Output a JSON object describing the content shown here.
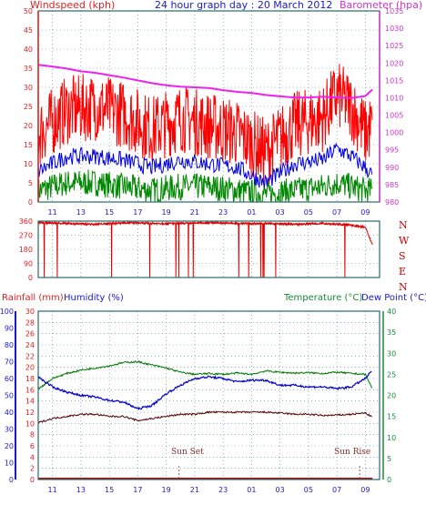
{
  "header": {
    "left": "Windspeed (kph)",
    "center": "24 hour graph day : 20 March 2012",
    "right": "Barometer (hpa)"
  },
  "mid_header": {
    "rain": "Rainfall (mm)",
    "humidity": "Humidity (%)",
    "temp": "Temperature (°C)",
    "dew": "Dew Point (°C)"
  },
  "colors": {
    "grid": "#3a8a8a",
    "wind_axis": "#e02020",
    "baro_axis": "#cc33cc",
    "rain_axis": "#1a1acc",
    "temp_axis": "#1a8a3a",
    "frame": "#2a6a6a"
  },
  "time_ticks": [
    "11",
    "13",
    "15",
    "17",
    "19",
    "21",
    "23",
    "01",
    "03",
    "05",
    "07",
    "09"
  ],
  "annotations": {
    "sunset": "Sun Set",
    "sunrise": "Sun Rise"
  },
  "chart_data": [
    {
      "type": "line",
      "title": "24 hour graph day : 20 March 2012",
      "x_ticks": [
        "11",
        "13",
        "15",
        "17",
        "19",
        "21",
        "23",
        "01",
        "03",
        "05",
        "07",
        "09"
      ],
      "y_left": {
        "label": "Windspeed (kph)",
        "ticks": [
          0,
          5,
          10,
          15,
          20,
          25,
          30,
          35,
          40,
          45,
          50
        ],
        "range": [
          0,
          50
        ]
      },
      "y_right": {
        "label": "Barometer (hpa)",
        "ticks": [
          980,
          985,
          990,
          995,
          1000,
          1005,
          1010,
          1015,
          1020,
          1025,
          1030,
          1035
        ],
        "range": [
          980,
          1035
        ]
      },
      "series": [
        {
          "name": "Barometer (hpa)",
          "color": "#ee22ee",
          "x": [
            10,
            11,
            12,
            13,
            14,
            15,
            16,
            17,
            18,
            19,
            20,
            21,
            22,
            23,
            24,
            25,
            26,
            27,
            28,
            29,
            30,
            31,
            32,
            33,
            33.5
          ],
          "values": [
            1019.5,
            1019,
            1018.4,
            1017.6,
            1017.2,
            1016.5,
            1015.8,
            1015,
            1014.2,
            1013.6,
            1013.2,
            1013,
            1012.8,
            1012.2,
            1011.7,
            1011.4,
            1010.8,
            1010.4,
            1010.1,
            1010.1,
            1010.3,
            1010.1,
            1009.9,
            1010.5,
            1012.4
          ]
        },
        {
          "name": "Windspeed gust",
          "color": "#ff0000",
          "x": [
            10,
            12,
            14,
            16,
            18,
            20,
            22,
            24,
            26,
            28,
            30,
            31,
            32,
            33,
            33.5
          ],
          "values": [
            18,
            24,
            25,
            23,
            19,
            22,
            20,
            18,
            13,
            20,
            22,
            28,
            25,
            18,
            20
          ]
        },
        {
          "name": "Windspeed average",
          "color": "#0000dd",
          "x": [
            10,
            12,
            14,
            16,
            18,
            20,
            22,
            24,
            26,
            28,
            30,
            31,
            32,
            33,
            33.5
          ],
          "values": [
            8,
            12,
            12,
            11,
            9,
            11,
            10,
            9,
            5,
            10,
            11,
            14,
            12,
            9,
            7
          ]
        },
        {
          "name": "Windspeed min",
          "color": "#008800",
          "x": [
            10,
            12,
            14,
            16,
            18,
            20,
            22,
            24,
            26,
            28,
            30,
            31,
            32,
            33,
            33.5
          ],
          "values": [
            3,
            5,
            5,
            4,
            3,
            4,
            4,
            3,
            2,
            3,
            4,
            5,
            4,
            3,
            3
          ]
        }
      ]
    },
    {
      "type": "scatter",
      "y_left": {
        "ticks": [
          0,
          90,
          180,
          270,
          360
        ],
        "range": [
          0,
          360
        ]
      },
      "y_right": {
        "labels": [
          "N",
          "W",
          "S",
          "E",
          "N"
        ]
      },
      "series": [
        {
          "name": "Wind direction",
          "color": "#dd0000",
          "x": [
            10,
            12,
            14,
            16,
            18,
            20,
            22,
            24,
            26,
            28,
            30,
            32,
            33,
            33.5
          ],
          "values": [
            350,
            345,
            340,
            350,
            345,
            345,
            350,
            345,
            345,
            340,
            345,
            335,
            320,
            210
          ]
        }
      ]
    },
    {
      "type": "line",
      "y_rain": {
        "label": "Rainfall (mm)",
        "ticks": [
          0,
          2,
          4,
          6,
          8,
          10,
          12,
          14,
          16,
          18,
          20,
          22,
          24,
          26,
          28,
          30
        ],
        "range": [
          0,
          30
        ]
      },
      "y_humidity": {
        "label": "Humidity (%)",
        "ticks": [
          0,
          10,
          20,
          30,
          40,
          50,
          60,
          70,
          80,
          90,
          100
        ],
        "range": [
          0,
          100
        ]
      },
      "y_temp": {
        "label": "Temperature (°C)",
        "ticks": [
          0,
          5,
          10,
          15,
          20,
          25,
          30,
          35,
          40
        ],
        "range": [
          0,
          40
        ]
      },
      "series": [
        {
          "name": "Temperature (°C)",
          "color": "#007700",
          "x": [
            10,
            11,
            12,
            13,
            14,
            15,
            16,
            17,
            18,
            19,
            20,
            21,
            22,
            23,
            24,
            25,
            26,
            27,
            28,
            29,
            30,
            31,
            32,
            33,
            33.5
          ],
          "values": [
            21.5,
            24,
            25.2,
            26,
            26.5,
            27,
            27.8,
            28,
            27.2,
            26.5,
            25.5,
            25,
            25.2,
            25,
            25.3,
            25,
            25.8,
            25.5,
            25.3,
            25.4,
            25.2,
            25.5,
            25.2,
            25,
            21.5
          ]
        },
        {
          "name": "Humidity (%)",
          "color": "#0000cc",
          "x": [
            10,
            11,
            12,
            13,
            14,
            15,
            16,
            17,
            18,
            19,
            20,
            21,
            22,
            23,
            24,
            25,
            26,
            27,
            28,
            29,
            30,
            31,
            32,
            33,
            33.5
          ],
          "values": [
            61,
            55,
            52,
            50,
            49,
            47,
            46,
            42,
            44,
            51,
            56,
            60,
            61,
            60,
            58,
            59,
            59,
            56,
            56,
            55,
            55,
            54,
            55,
            60,
            65
          ]
        },
        {
          "name": "Dew Point (°C)",
          "color": "#550000",
          "x": [
            10,
            11,
            12,
            13,
            14,
            15,
            16,
            17,
            18,
            19,
            20,
            21,
            22,
            23,
            24,
            25,
            26,
            27,
            28,
            29,
            30,
            31,
            32,
            33,
            33.5
          ],
          "values": [
            13.5,
            14.5,
            15,
            15.5,
            15.5,
            15,
            15,
            14,
            14.5,
            15,
            15.5,
            15.5,
            16,
            16,
            16,
            16,
            16,
            15.8,
            15.5,
            15.5,
            15.2,
            15.3,
            15.5,
            15.8,
            14.8
          ]
        },
        {
          "name": "Rainfall (mm)",
          "color": "#cc0000",
          "x": [
            10,
            33.5
          ],
          "values": [
            0,
            0
          ]
        }
      ]
    }
  ]
}
